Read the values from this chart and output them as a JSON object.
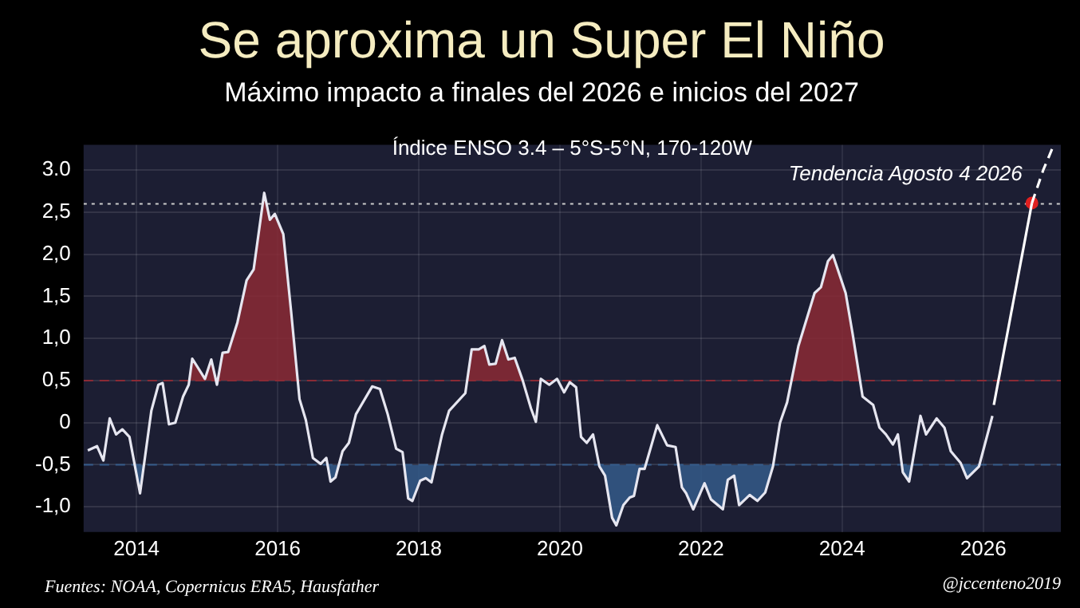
{
  "chart_data": {
    "type": "line",
    "title": "Se aproxima un Super El Niño",
    "subtitle": "Máximo impacto a finales del 2026 e inicios del 2027",
    "annotations": [
      "Índice ENSO 3.4 – 5°S-5°N, 170-120W",
      "Fuentes: NOAA, Copernicus ERA5, Hausfather",
      "@jccenteno2019",
      {
        "text": "Tendencia Agosto 4 2026",
        "x": 2026.69,
        "y": 2.61
      }
    ],
    "xlim": [
      2013.25,
      2027.1
    ],
    "xticks": [
      2014,
      2016,
      2018,
      2020,
      2022,
      2024,
      2026
    ],
    "ylim": [
      -1.3,
      3.3
    ],
    "yticks": [
      {
        "value": 3,
        "label": "3.0"
      },
      {
        "value": 2.5,
        "label": "2,5"
      },
      {
        "value": 2,
        "label": "2,0"
      },
      {
        "value": 1.5,
        "label": "1,5"
      },
      {
        "value": 1,
        "label": "1,0"
      },
      {
        "value": 0.5,
        "label": "0,5"
      },
      0,
      {
        "value": -0.5,
        "label": "-0,5"
      },
      {
        "value": -1,
        "label": "-1,0"
      }
    ],
    "grid": true,
    "legend": false,
    "ref_lines": [
      {
        "axis": "y",
        "value": 0.5,
        "color": "#8b2a35",
        "line_style": "dashed"
      },
      {
        "axis": "y",
        "value": -0.5,
        "color": "#345a8a",
        "line_style": "dashed"
      },
      {
        "axis": "y",
        "value": 2.6,
        "color": "#cccccc",
        "line_style": "dotted"
      }
    ],
    "series": [
      {
        "color": "#e6e6f0",
        "marker": "none",
        "x": [
          2013.31,
          2013.44,
          2013.53,
          2013.62,
          2013.71,
          2013.8,
          2013.9,
          2014.05,
          2014.21,
          2014.31,
          2014.37,
          2014.46,
          2014.55,
          2014.66,
          2014.74,
          2014.79,
          2014.97,
          2015.06,
          2015.14,
          2015.22,
          2015.3,
          2015.43,
          2015.56,
          2015.66,
          2015.81,
          2015.89,
          2015.96,
          2016.08,
          2016.19,
          2016.31,
          2016.4,
          2016.5,
          2016.61,
          2016.69,
          2016.75,
          2016.82,
          2016.92,
          2017.01,
          2017.11,
          2017.34,
          2017.45,
          2017.56,
          2017.68,
          2017.77,
          2017.85,
          2017.91,
          2018.02,
          2018.1,
          2018.18,
          2018.33,
          2018.43,
          2018.66,
          2018.75,
          2018.85,
          2018.93,
          2019.0,
          2019.09,
          2019.18,
          2019.27,
          2019.36,
          2019.47,
          2019.59,
          2019.66,
          2019.73,
          2019.85,
          2019.96,
          2020.06,
          2020.14,
          2020.23,
          2020.3,
          2020.38,
          2020.47,
          2020.56,
          2020.64,
          2020.74,
          2020.8,
          2020.9,
          2020.99,
          2021.05,
          2021.13,
          2021.2,
          2021.38,
          2021.52,
          2021.64,
          2021.73,
          2021.79,
          2021.89,
          2022.05,
          2022.14,
          2022.31,
          2022.38,
          2022.47,
          2022.54,
          2022.69,
          2022.8,
          2022.91,
          2023.02,
          2023.12,
          2023.22,
          2023.38,
          2023.61,
          2023.7,
          2023.8,
          2023.87,
          2024.05,
          2024.15,
          2024.29,
          2024.44,
          2024.53,
          2024.62,
          2024.72,
          2024.79,
          2024.86,
          2024.95,
          2025.11,
          2025.19,
          2025.34,
          2025.45,
          2025.54,
          2025.68,
          2025.77,
          2025.94,
          2026.13
        ],
        "values": [
          -0.33,
          -0.28,
          -0.45,
          0.05,
          -0.14,
          -0.08,
          -0.17,
          -0.84,
          0.14,
          0.45,
          0.47,
          -0.02,
          0,
          0.31,
          0.45,
          0.76,
          0.52,
          0.75,
          0.45,
          0.83,
          0.84,
          1.19,
          1.69,
          1.82,
          2.73,
          2.41,
          2.48,
          2.24,
          1.33,
          0.28,
          0.03,
          -0.42,
          -0.49,
          -0.42,
          -0.7,
          -0.65,
          -0.34,
          -0.24,
          0.1,
          0.43,
          0.4,
          0.1,
          -0.31,
          -0.35,
          -0.9,
          -0.93,
          -0.69,
          -0.66,
          -0.71,
          -0.14,
          0.14,
          0.35,
          0.87,
          0.87,
          0.91,
          0.69,
          0.7,
          0.98,
          0.75,
          0.77,
          0.51,
          0.17,
          0.01,
          0.52,
          0.45,
          0.52,
          0.36,
          0.48,
          0.42,
          -0.17,
          -0.24,
          -0.14,
          -0.52,
          -0.63,
          -1.13,
          -1.22,
          -0.98,
          -0.89,
          -0.87,
          -0.55,
          -0.55,
          -0.03,
          -0.27,
          -0.29,
          -0.77,
          -0.84,
          -1.03,
          -0.72,
          -0.91,
          -1.03,
          -0.68,
          -0.63,
          -0.98,
          -0.86,
          -0.93,
          -0.83,
          -0.52,
          0,
          0.24,
          0.91,
          1.54,
          1.61,
          1.92,
          1.99,
          1.54,
          1.05,
          0.31,
          0.21,
          -0.06,
          -0.14,
          -0.26,
          -0.14,
          -0.59,
          -0.7,
          0.08,
          -0.14,
          0.05,
          -0.06,
          -0.34,
          -0.48,
          -0.66,
          -0.52,
          0.08
        ]
      },
      {
        "type": "line",
        "color": "#ffffff",
        "marker": "none",
        "line_style": "solid",
        "x": [
          2026.15,
          2026.69
        ],
        "values": [
          0.21,
          2.61
        ]
      },
      {
        "type": "line",
        "color": "#ffffff",
        "marker": "none",
        "line_style": "dashed",
        "x": [
          2026.69,
          2026.85,
          2027.0
        ],
        "values": [
          2.61,
          3.0,
          3.3
        ]
      },
      {
        "type": "scatter",
        "color": "#e02020",
        "marker": "circle",
        "x": [
          2026.69
        ],
        "values": [
          2.61
        ]
      }
    ]
  }
}
